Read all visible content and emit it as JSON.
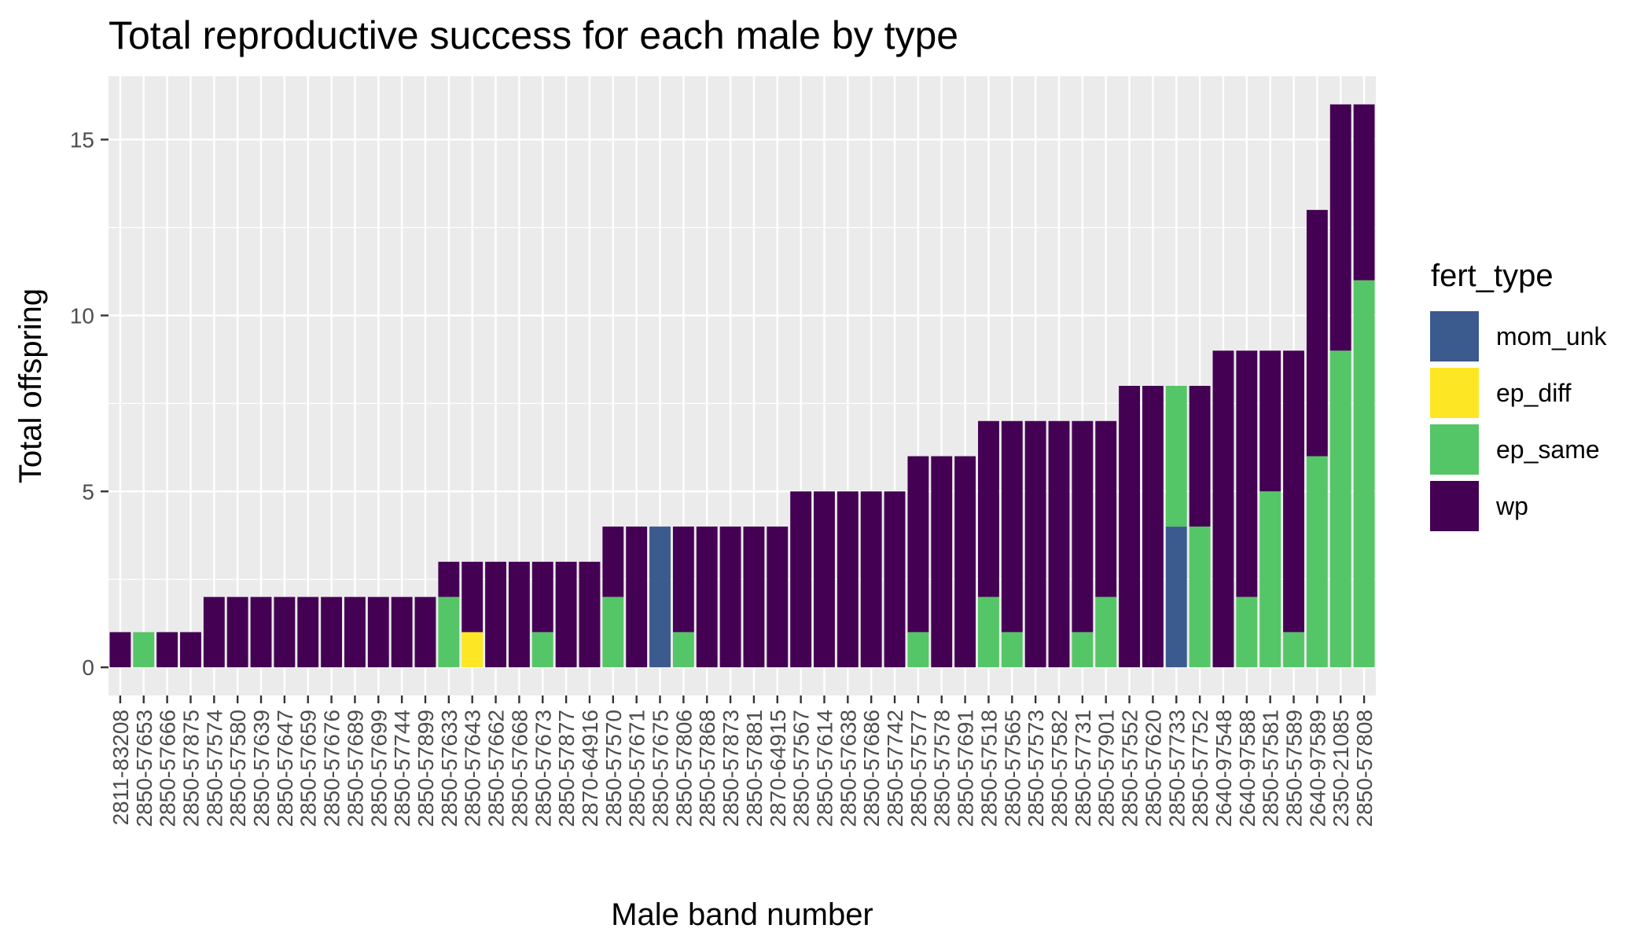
{
  "chart_data": {
    "type": "bar",
    "stacked": true,
    "title": "Total reproductive success for each male by type",
    "xlabel": "Male band number",
    "ylabel": "Total offspring",
    "ylim": [
      -0.8,
      16.8
    ],
    "yticks": [
      0,
      5,
      10,
      15
    ],
    "grid": true,
    "legend": {
      "title": "fert_type",
      "position": "right",
      "order": [
        "mom_unk",
        "ep_diff",
        "ep_same",
        "wp"
      ]
    },
    "colors": {
      "wp": "#440154",
      "ep_same": "#55c667",
      "ep_diff": "#fde725",
      "mom_unk": "#3b5a8e",
      "panel": "#ebebeb",
      "grid": "#ffffff",
      "tick": "#333333",
      "tick_label": "#4d4d4d"
    },
    "stack_order_bottom_to_top": [
      "mom_unk",
      "ep_diff",
      "ep_same",
      "wp"
    ],
    "categories": [
      "2811-83208",
      "2850-57653",
      "2850-57666",
      "2850-57875",
      "2850-57574",
      "2850-57580",
      "2850-57639",
      "2850-57647",
      "2850-57659",
      "2850-57676",
      "2850-57689",
      "2850-57699",
      "2850-57744",
      "2850-57899",
      "2850-57633",
      "2850-57643",
      "2850-57662",
      "2850-57668",
      "2850-57673",
      "2850-57877",
      "2870-64916",
      "2850-57570",
      "2850-57671",
      "2850-57675",
      "2850-57806",
      "2850-57868",
      "2850-57873",
      "2850-57881",
      "2870-64915",
      "2850-57567",
      "2850-57614",
      "2850-57638",
      "2850-57686",
      "2850-57742",
      "2850-57577",
      "2850-57578",
      "2850-57691",
      "2850-57518",
      "2850-57565",
      "2850-57573",
      "2850-57582",
      "2850-57731",
      "2850-57901",
      "2850-57552",
      "2850-57620",
      "2850-57733",
      "2850-57752",
      "2640-97548",
      "2640-97588",
      "2850-57581",
      "2850-57589",
      "2640-97589",
      "2350-21085",
      "2850-57808"
    ],
    "series": [
      {
        "name": "wp",
        "values": [
          1,
          0,
          1,
          1,
          2,
          2,
          2,
          2,
          2,
          2,
          2,
          2,
          2,
          2,
          1,
          2,
          3,
          3,
          2,
          3,
          3,
          2,
          4,
          0,
          3,
          4,
          4,
          4,
          4,
          5,
          5,
          5,
          5,
          5,
          5,
          6,
          6,
          5,
          6,
          7,
          7,
          6,
          5,
          8,
          8,
          0,
          4,
          9,
          7,
          4,
          8,
          7,
          7,
          5
        ]
      },
      {
        "name": "ep_same",
        "values": [
          0,
          1,
          0,
          0,
          0,
          0,
          0,
          0,
          0,
          0,
          0,
          0,
          0,
          0,
          2,
          0,
          0,
          0,
          1,
          0,
          0,
          2,
          0,
          0,
          1,
          0,
          0,
          0,
          0,
          0,
          0,
          0,
          0,
          0,
          1,
          0,
          0,
          2,
          1,
          0,
          0,
          1,
          2,
          0,
          0,
          4,
          4,
          0,
          2,
          5,
          1,
          6,
          9,
          11
        ]
      },
      {
        "name": "ep_diff",
        "values": [
          0,
          0,
          0,
          0,
          0,
          0,
          0,
          0,
          0,
          0,
          0,
          0,
          0,
          0,
          0,
          1,
          0,
          0,
          0,
          0,
          0,
          0,
          0,
          0,
          0,
          0,
          0,
          0,
          0,
          0,
          0,
          0,
          0,
          0,
          0,
          0,
          0,
          0,
          0,
          0,
          0,
          0,
          0,
          0,
          0,
          0,
          0,
          0,
          0,
          0,
          0,
          0,
          0,
          0
        ]
      },
      {
        "name": "mom_unk",
        "values": [
          0,
          0,
          0,
          0,
          0,
          0,
          0,
          0,
          0,
          0,
          0,
          0,
          0,
          0,
          0,
          0,
          0,
          0,
          0,
          0,
          0,
          0,
          0,
          4,
          0,
          0,
          0,
          0,
          0,
          0,
          0,
          0,
          0,
          0,
          0,
          0,
          0,
          0,
          0,
          0,
          0,
          0,
          0,
          0,
          0,
          4,
          0,
          0,
          0,
          0,
          0,
          0,
          0,
          0
        ]
      }
    ]
  }
}
